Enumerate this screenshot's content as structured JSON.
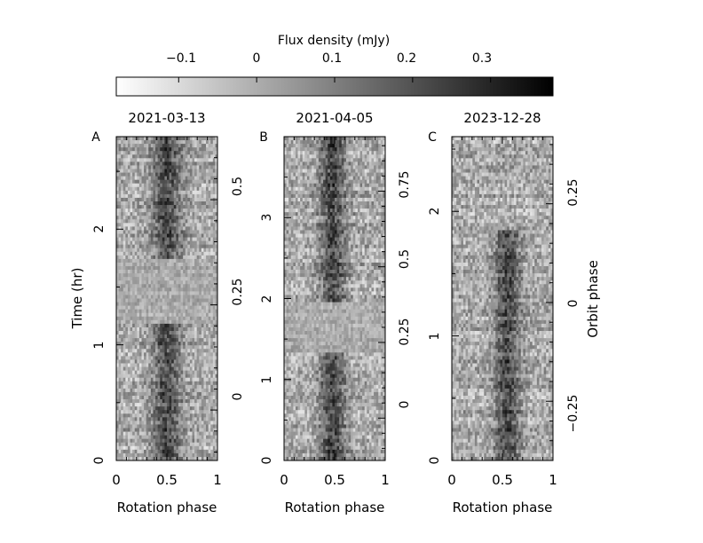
{
  "figure": {
    "colorbar_title": "Flux density (mJy)",
    "colorbar_ticks": [
      "−0.1",
      "0",
      "0.1",
      "0.2",
      "0.3"
    ],
    "shared_xlabel": "Rotation phase",
    "shared_ylabel": "Time (hr)",
    "right_ylabel": "Orbit phase"
  },
  "chart_data": [
    {
      "type": "heatmap",
      "panel_label": "A",
      "title": "2021-03-13",
      "xlabel": "Rotation phase",
      "ylabel": "Time (hr)",
      "xlim": [
        0,
        1
      ],
      "ylim": [
        0,
        2.8
      ],
      "x_ticks": [
        "0",
        "0.5",
        "1"
      ],
      "y_ticks": [
        "0",
        "1",
        "2"
      ],
      "right_axis": {
        "label": "Orbit phase",
        "range": [
          -0.12,
          0.65
        ],
        "ticks": [
          "0",
          "0.25",
          "0.5"
        ]
      },
      "colorbar_range": [
        -0.18,
        0.38
      ],
      "gaps_hr": [
        [
          1.18,
          1.75
        ]
      ],
      "pulse_center_phase": 0.5,
      "pulse_peak_mJy": 0.3,
      "pulse_width_phase": 0.1
    },
    {
      "type": "heatmap",
      "panel_label": "B",
      "title": "2021-04-05",
      "xlabel": "Rotation phase",
      "ylabel": "Time (hr)",
      "xlim": [
        0,
        1
      ],
      "ylim": [
        0,
        4.0
      ],
      "x_ticks": [
        "0",
        "0.5",
        "1"
      ],
      "y_ticks": [
        "0",
        "1",
        "2",
        "3"
      ],
      "right_axis": {
        "label": "Orbit phase",
        "range": [
          -0.14,
          0.93
        ],
        "ticks": [
          "0",
          "0.25",
          "0.5",
          "0.75"
        ]
      },
      "colorbar_range": [
        -0.18,
        0.38
      ],
      "gaps_hr": [
        [
          1.32,
          1.95
        ]
      ],
      "pulse_center_phase": 0.48,
      "pulse_peak_mJy": 0.32,
      "pulse_width_phase": 0.09
    },
    {
      "type": "heatmap",
      "panel_label": "C",
      "title": "2023-12-28",
      "xlabel": "Rotation phase",
      "ylabel": "Time (hr)",
      "xlim": [
        0,
        1
      ],
      "ylim": [
        0,
        2.6
      ],
      "x_ticks": [
        "0",
        "0.5",
        "1"
      ],
      "y_ticks": [
        "0",
        "1",
        "2"
      ],
      "right_axis": {
        "label": "Orbit phase",
        "range": [
          -0.4,
          0.42
        ],
        "ticks": [
          "−0.25",
          "0",
          "0.25"
        ]
      },
      "colorbar_range": [
        -0.18,
        0.38
      ],
      "gaps_hr": [],
      "pulse_center_phase": 0.55,
      "pulse_peak_mJy": 0.3,
      "pulse_width_phase": 0.09,
      "pulse_time_range_hr": [
        0,
        1.85
      ]
    }
  ]
}
